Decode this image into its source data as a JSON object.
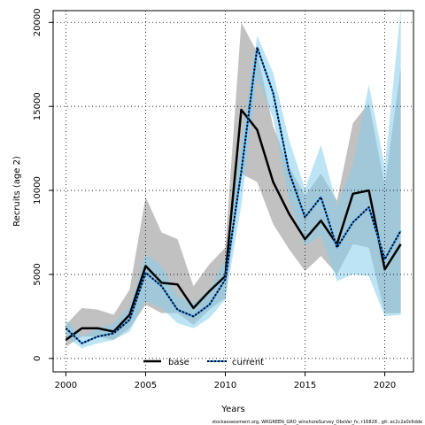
{
  "chart_data": {
    "type": "line",
    "xlabel": "Years",
    "ylabel": "Recruits (age 2)",
    "xlim": [
      1999.2,
      2021.8
    ],
    "ylim": [
      -800,
      20700
    ],
    "xticks": [
      2000,
      2005,
      2010,
      2015,
      2020
    ],
    "yticks": [
      0,
      5000,
      10000,
      15000,
      20000
    ],
    "grid": true,
    "legend_position": "bottom-center",
    "caption": "stockassessment.org,  WKGREEN_GRO_wInshoreSurvey_ObsVar_fv,  r16828 , git: ec2c2a0c6dde",
    "x": [
      2000,
      2001,
      2002,
      2003,
      2004,
      2005,
      2006,
      2007,
      2008,
      2009,
      2010,
      2011,
      2012,
      2013,
      2014,
      2015,
      2016,
      2017,
      2018,
      2019,
      2020,
      2021
    ],
    "series": [
      {
        "name": "base",
        "color": "#000000",
        "band_color": "#bebebe",
        "values": [
          1100,
          1800,
          1800,
          1600,
          2600,
          5500,
          4500,
          4400,
          3000,
          4000,
          4900,
          14800,
          13600,
          10500,
          8600,
          7100,
          8200,
          6800,
          9800,
          10000,
          5300,
          6800
        ],
        "lower": [
          700,
          1300,
          1300,
          1100,
          1800,
          3200,
          2700,
          2700,
          2000,
          2900,
          3600,
          11000,
          10500,
          8000,
          6500,
          5200,
          6100,
          5000,
          6800,
          6600,
          2700,
          2700
        ],
        "upper": [
          2000,
          3000,
          2900,
          2600,
          4100,
          9600,
          7500,
          7100,
          4300,
          5600,
          6600,
          20000,
          18200,
          13800,
          11400,
          9700,
          11000,
          9400,
          14000,
          15200,
          10300,
          17300
        ]
      },
      {
        "name": "current",
        "color": "#1e90ff",
        "band_color": "#87ceeb",
        "values": [
          1800,
          900,
          1300,
          1500,
          2300,
          5100,
          4300,
          2900,
          2500,
          3200,
          4700,
          11100,
          18500,
          15800,
          11100,
          8400,
          9600,
          6600,
          8100,
          9000,
          5900,
          7600
        ],
        "lower": [
          1300,
          600,
          900,
          1100,
          1600,
          3400,
          3000,
          2100,
          1800,
          2400,
          3500,
          9100,
          16700,
          14300,
          9400,
          6700,
          7300,
          4600,
          5000,
          4900,
          2500,
          2600
        ],
        "upper": [
          2300,
          1300,
          1800,
          2100,
          3100,
          6200,
          5500,
          3700,
          3300,
          4100,
          5900,
          12900,
          19200,
          17000,
          13000,
          10100,
          12700,
          9100,
          11500,
          16300,
          11400,
          20800
        ]
      }
    ]
  }
}
